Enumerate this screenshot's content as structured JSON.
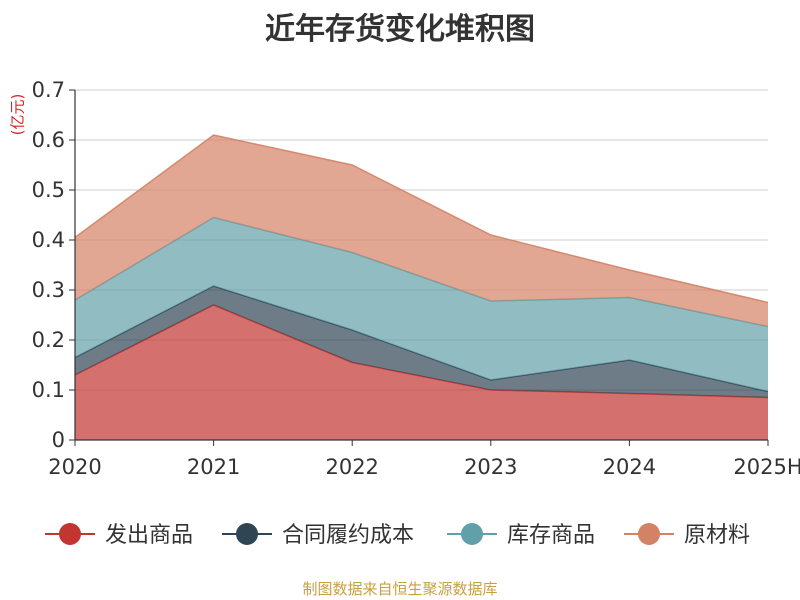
{
  "chart_data": {
    "type": "area",
    "stacked": true,
    "title": "近年存货变化堆积图",
    "unit": "(亿元)",
    "categories": [
      "2020",
      "2021",
      "2022",
      "2023",
      "2024",
      "2025H"
    ],
    "ylim": [
      0,
      0.7
    ],
    "yticks": [
      "0",
      "0.1",
      "0.2",
      "0.3",
      "0.4",
      "0.5",
      "0.6",
      "0.7"
    ],
    "grid": true,
    "legend_position": "bottom",
    "series": [
      {
        "name": "发出商品",
        "color": "#c23531",
        "values": [
          0.13,
          0.27,
          0.155,
          0.1,
          0.093,
          0.085
        ]
      },
      {
        "name": "合同履约成本",
        "color": "#2f4554",
        "values": [
          0.035,
          0.038,
          0.065,
          0.02,
          0.067,
          0.012
        ]
      },
      {
        "name": "库存商品",
        "color": "#61a0a8",
        "values": [
          0.115,
          0.137,
          0.155,
          0.158,
          0.125,
          0.13
        ]
      },
      {
        "name": "原材料",
        "color": "#d48265",
        "values": [
          0.125,
          0.165,
          0.175,
          0.132,
          0.055,
          0.048
        ]
      }
    ]
  },
  "source_note": "制图数据来自恒生聚源数据库"
}
